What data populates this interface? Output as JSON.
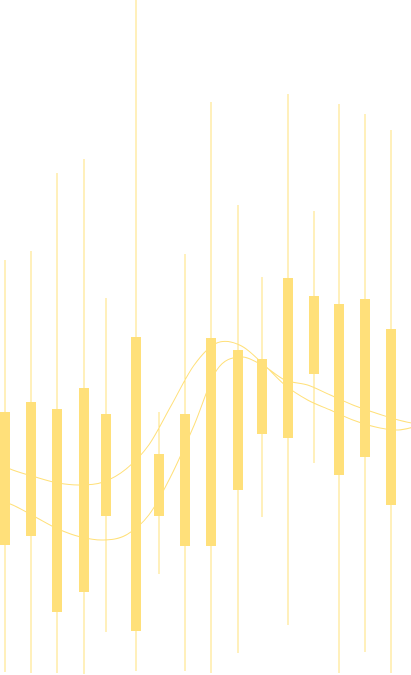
{
  "chart_data": {
    "type": "candlestick",
    "title": "",
    "xlabel": "",
    "ylabel": "",
    "grid": false,
    "legend": "none",
    "ylim": [
      0,
      675
    ],
    "x": [
      1,
      2,
      3,
      4,
      5,
      6,
      7,
      8,
      9,
      10,
      11,
      12,
      13,
      14,
      15,
      16,
      17,
      18,
      19,
      20
    ],
    "candles": [
      {
        "x": 1,
        "high": 415,
        "body_high": 263,
        "body_low": 130,
        "low": 3
      },
      {
        "x": 2,
        "high": 424,
        "body_high": 273,
        "body_low": 139,
        "low": 2
      },
      {
        "x": 3,
        "high": 502,
        "body_high": 266,
        "body_low": 63,
        "low": 2
      },
      {
        "x": 4,
        "high": 516,
        "body_high": 287,
        "body_low": 83,
        "low": 1
      },
      {
        "x": 5,
        "high": 377,
        "body_high": 261,
        "body_low": 159,
        "low": 43
      },
      {
        "x": 6,
        "high": 675,
        "body_high": 338,
        "body_low": 44,
        "low": 4
      },
      {
        "x": 7,
        "high": 263,
        "body_high": 221,
        "body_low": 159,
        "low": 101
      },
      {
        "x": 8,
        "high": 421,
        "body_high": 261,
        "body_low": 129,
        "low": 4
      },
      {
        "x": 9,
        "high": 573,
        "body_high": 337,
        "body_low": 129,
        "low": 2
      },
      {
        "x": 10,
        "high": 470,
        "body_high": 325,
        "body_low": 185,
        "low": 22
      },
      {
        "x": 11,
        "high": 398,
        "body_high": 316,
        "body_low": 241,
        "low": 158
      },
      {
        "x": 12,
        "high": 581,
        "body_high": 397,
        "body_low": 237,
        "low": 50
      },
      {
        "x": 13,
        "high": 464,
        "body_high": 379,
        "body_low": 301,
        "low": 212
      },
      {
        "x": 14,
        "high": 571,
        "body_high": 371,
        "body_low": 200,
        "low": 2
      },
      {
        "x": 15,
        "high": 561,
        "body_high": 376,
        "body_low": 218,
        "low": 23
      },
      {
        "x": 16,
        "high": 545,
        "body_high": 346,
        "body_low": 170,
        "low": 2
      }
    ],
    "series": [
      {
        "values": [
          215,
          205,
          198,
          192,
          190,
          193,
          206,
          230,
          270,
          310,
          332,
          330,
          312,
          290,
          275,
          265,
          255,
          248,
          245,
          250
        ]
      },
      {
        "values": [
          178,
          170,
          158,
          146,
          138,
          135,
          140,
          160,
          200,
          250,
          305,
          318,
          310,
          295,
          290,
          280,
          270,
          262,
          255,
          250
        ]
      }
    ],
    "colors": {
      "candle": "#ffe07a",
      "wick": "#ffe07a",
      "line": "#ffe07a"
    }
  }
}
